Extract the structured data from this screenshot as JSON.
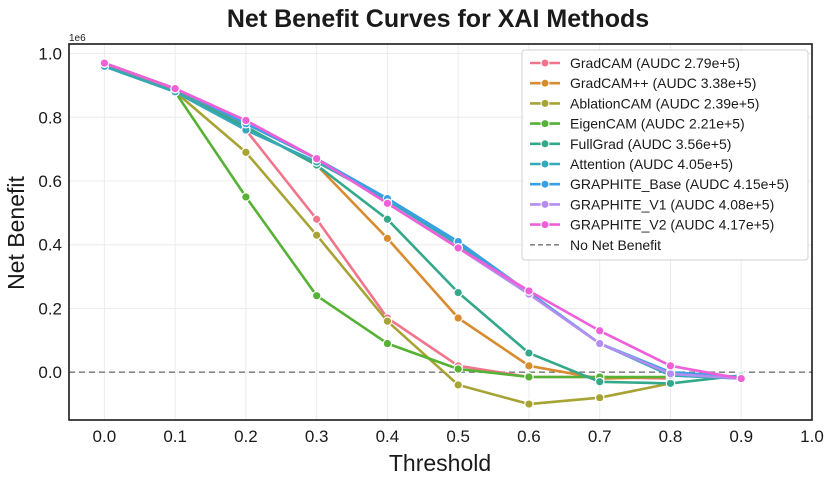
{
  "chart_data": {
    "type": "line",
    "title": "Net Benefit Curves for XAI Methods",
    "xlabel": "Threshold",
    "ylabel": "Net Benefit",
    "y_offset_label": "1e6",
    "xlim": [
      -0.05,
      1.0
    ],
    "ylim": [
      -0.15,
      1.03
    ],
    "x_ticks": [
      "0.0",
      "0.1",
      "0.2",
      "0.3",
      "0.4",
      "0.5",
      "0.6",
      "0.7",
      "0.8",
      "0.9",
      "1.0"
    ],
    "y_ticks": [
      "0.0",
      "0.2",
      "0.4",
      "0.6",
      "0.8",
      "1.0"
    ],
    "grid": true,
    "legend_position": "top-right",
    "x": [
      0.0,
      0.1,
      0.2,
      0.3,
      0.4,
      0.5,
      0.6,
      0.7,
      0.8,
      0.9
    ],
    "series": [
      {
        "name": "GradCAM (AUDC 2.79e+5)",
        "color": "#f0758c",
        "values": [
          0.97,
          0.89,
          0.76,
          0.48,
          0.17,
          0.02,
          -0.015,
          -0.015,
          -0.02,
          null
        ]
      },
      {
        "name": "GradCAM++ (AUDC 3.38e+5)",
        "color": "#d98b30",
        "values": [
          0.97,
          0.89,
          0.77,
          0.65,
          0.42,
          0.17,
          0.02,
          -0.02,
          -0.015,
          null
        ]
      },
      {
        "name": "AblationCAM (AUDC 2.39e+5)",
        "color": "#a8a335",
        "values": [
          0.97,
          0.88,
          0.69,
          0.43,
          0.16,
          -0.04,
          -0.1,
          -0.08,
          -0.035,
          null
        ]
      },
      {
        "name": "EigenCAM (AUDC 2.21e+5)",
        "color": "#55b234",
        "values": [
          0.96,
          0.88,
          0.55,
          0.24,
          0.09,
          0.01,
          -0.015,
          -0.015,
          -0.015,
          null
        ]
      },
      {
        "name": "FullGrad (AUDC 3.56e+5)",
        "color": "#34a88a",
        "values": [
          0.96,
          0.88,
          0.77,
          0.65,
          0.48,
          0.25,
          0.06,
          -0.03,
          -0.035,
          -0.01
        ]
      },
      {
        "name": "Attention (AUDC 4.05e+5)",
        "color": "#36a8b8",
        "values": [
          0.96,
          0.88,
          0.76,
          0.66,
          0.54,
          0.4,
          0.25,
          0.09,
          -0.01,
          -0.02
        ]
      },
      {
        "name": "GRAPHITE_Base (AUDC 4.15e+5)",
        "color": "#3aa0e5",
        "values": [
          0.97,
          0.89,
          0.78,
          0.67,
          0.545,
          0.41,
          0.25,
          0.09,
          0.0,
          -0.015
        ]
      },
      {
        "name": "GRAPHITE_V1 (AUDC 4.08e+5)",
        "color": "#b58cf0",
        "values": [
          0.97,
          0.89,
          0.79,
          0.67,
          0.53,
          0.39,
          0.245,
          0.09,
          -0.005,
          -0.02
        ]
      },
      {
        "name": "GRAPHITE_V2 (AUDC 4.17e+5)",
        "color": "#ef5fd8",
        "values": [
          0.97,
          0.89,
          0.79,
          0.67,
          0.53,
          0.39,
          0.255,
          0.13,
          0.02,
          -0.02
        ]
      }
    ],
    "reference_line": {
      "name": "No Net Benefit",
      "y": 0,
      "color": "#888888",
      "style": "dashed"
    }
  }
}
